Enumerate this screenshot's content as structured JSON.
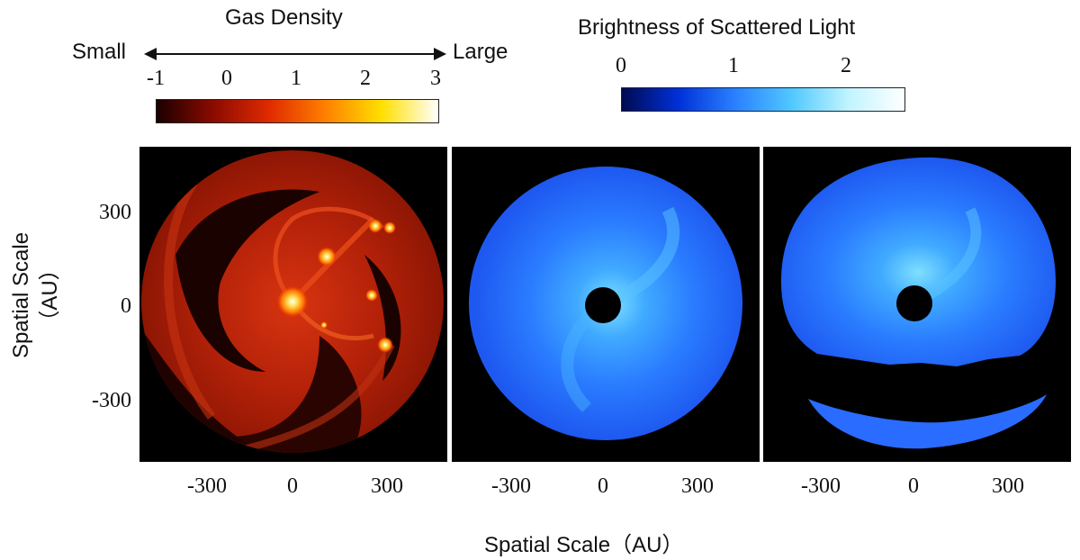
{
  "gas_colorbar": {
    "title": "Gas Density",
    "left_label": "Small",
    "right_label": "Large",
    "ticks": [
      "-1",
      "0",
      "1",
      "2",
      "3"
    ],
    "colors": [
      "#1a0000",
      "#8a0b00",
      "#e02a00",
      "#ff8000",
      "#ffe000",
      "#ffffff"
    ]
  },
  "light_colorbar": {
    "title": "Brightness of Scattered Light",
    "ticks": [
      "0",
      "1",
      "2"
    ],
    "colors": [
      "#000a50",
      "#0030d8",
      "#2a80ff",
      "#50c8ff",
      "#c0f4ff",
      "#ffffff"
    ]
  },
  "axes": {
    "y_label_line1": "Spatial Scale",
    "y_label_line2": "（AU）",
    "x_label": "Spatial Scale（AU）",
    "y_ticks": [
      "300",
      "0",
      "-300"
    ],
    "x_ticks": [
      "-300",
      "0",
      "300"
    ]
  },
  "panels": [
    {
      "name": "gas-density-map",
      "colormap": "red-hot"
    },
    {
      "name": "scattered-light-face-on",
      "colormap": "blue"
    },
    {
      "name": "scattered-light-inclined",
      "colormap": "blue"
    }
  ]
}
